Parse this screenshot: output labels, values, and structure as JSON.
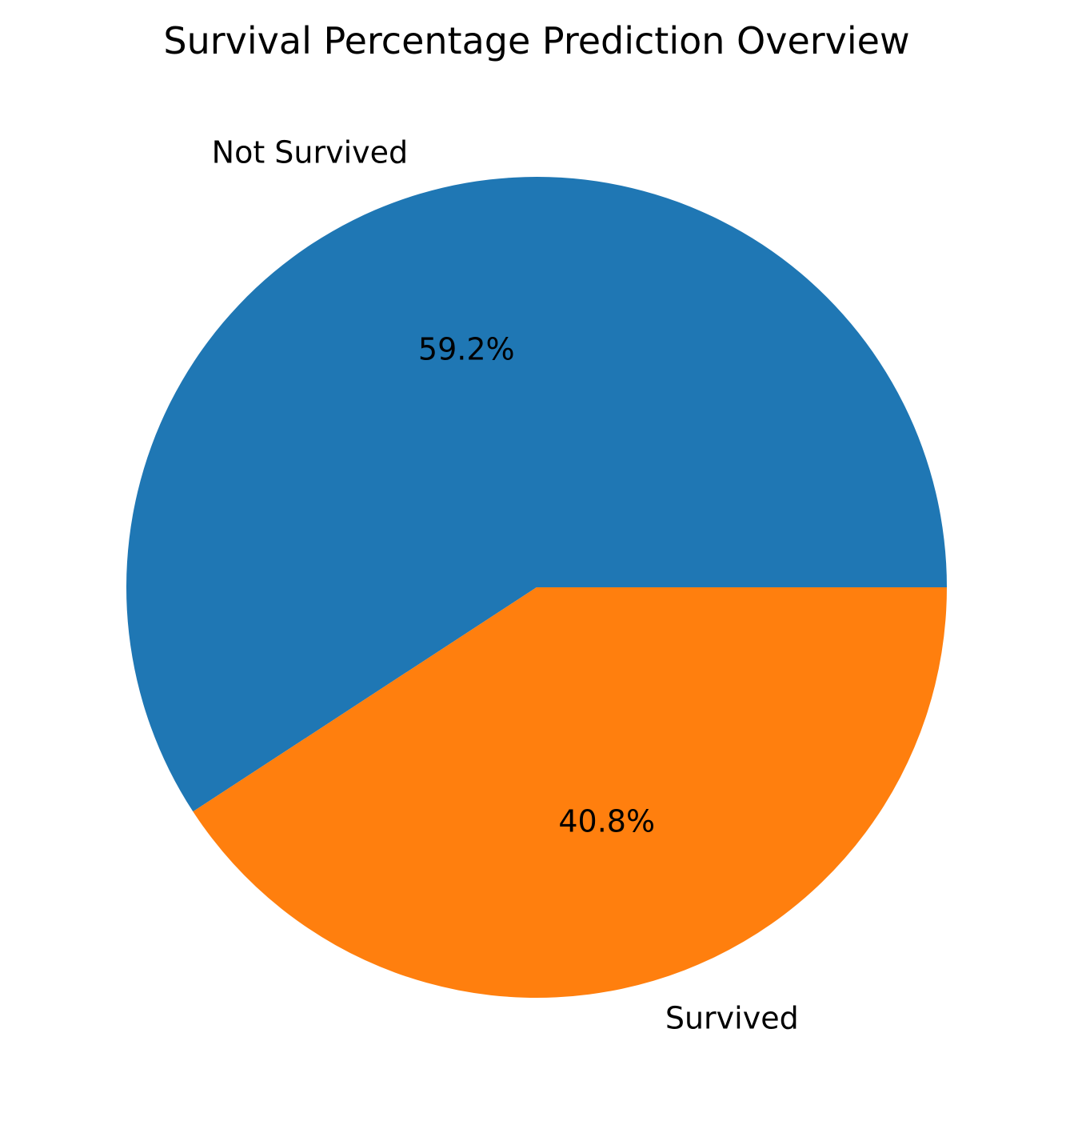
{
  "chart_data": {
    "type": "pie",
    "title": "Survival Percentage Prediction Overview",
    "slices": [
      {
        "label": "Not Survived",
        "value": 59.2,
        "display": "59.2%",
        "color": "#1f77b4"
      },
      {
        "label": "Survived",
        "value": 40.8,
        "display": "40.8%",
        "color": "#ff7f0e"
      }
    ],
    "start_angle_deg": 0,
    "direction": "counterclockwise",
    "legend": "none"
  }
}
